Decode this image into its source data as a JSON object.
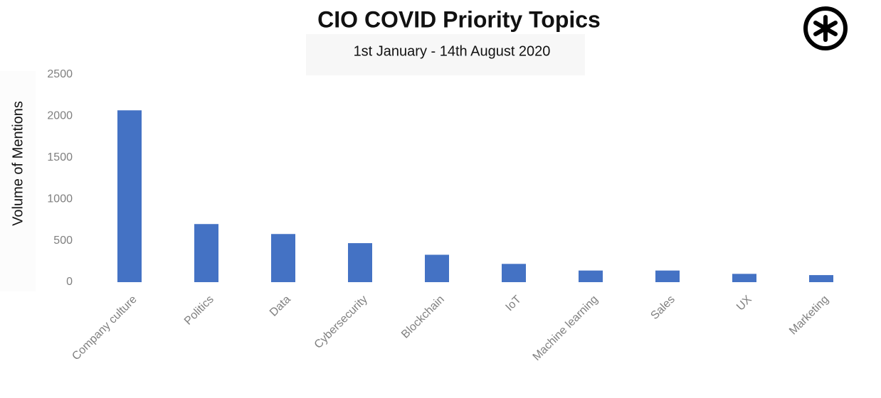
{
  "chart_data": {
    "type": "bar",
    "title": "CIO COVID Priority Topics",
    "subtitle": "1st January - 14th August 2020",
    "y_label": "Volume of Mentions",
    "categories": [
      "Company culture",
      "Politics",
      "Data",
      "Cybersecurity",
      "Blockchain",
      "IoT",
      "Machine learning",
      "Sales",
      "UX",
      "Marketing"
    ],
    "values": [
      2070,
      700,
      580,
      470,
      330,
      220,
      140,
      140,
      100,
      85
    ],
    "color": "#4472c4",
    "ylim": [
      0,
      2500
    ],
    "yticks": [
      0,
      500,
      1000,
      1500,
      2000,
      2500
    ],
    "grid": false
  }
}
